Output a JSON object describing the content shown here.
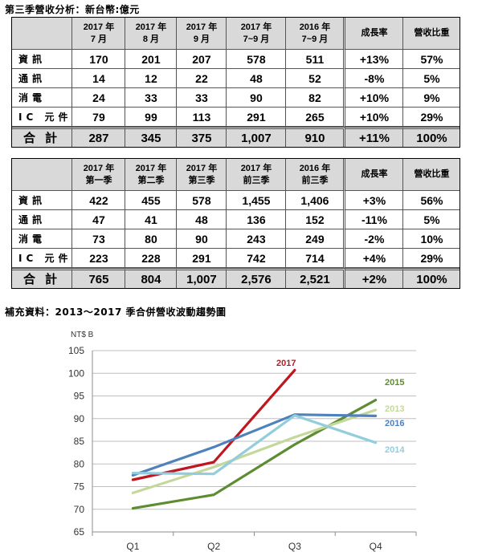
{
  "heading1": "第三季營收分析：新台幣:億元",
  "heading2": "補充資料：2013～2017 季合併營收波動趨勢圖",
  "table1": {
    "headers": [
      "",
      "2017 年\n7 月",
      "2017 年\n8 月",
      "2017 年\n9 月",
      "2017 年\n7~9 月",
      "2016 年\n7~9 月",
      "成長率",
      "營收比重"
    ],
    "rows": [
      [
        "資訊",
        "170",
        "201",
        "207",
        "578",
        "511",
        "+13%",
        "57%"
      ],
      [
        "通訊",
        "14",
        "12",
        "22",
        "48",
        "52",
        "-8%",
        "5%"
      ],
      [
        "消電",
        "24",
        "33",
        "33",
        "90",
        "82",
        "+10%",
        "9%"
      ],
      [
        "IC 元件",
        "79",
        "99",
        "113",
        "291",
        "265",
        "+10%",
        "29%"
      ]
    ],
    "total": [
      "合計",
      "287",
      "345",
      "375",
      "1,007",
      "910",
      "+11%",
      "100%"
    ]
  },
  "table2": {
    "headers": [
      "",
      "2017 年\n第一季",
      "2017 年\n第二季",
      "2017 年\n第三季",
      "2017 年\n前三季",
      "2016 年\n前三季",
      "成長率",
      "營收比重"
    ],
    "rows": [
      [
        "資訊",
        "422",
        "455",
        "578",
        "1,455",
        "1,406",
        "+3%",
        "56%"
      ],
      [
        "通訊",
        "47",
        "41",
        "48",
        "136",
        "152",
        "-11%",
        "5%"
      ],
      [
        "消電",
        "73",
        "80",
        "90",
        "243",
        "249",
        "-2%",
        "10%"
      ],
      [
        "IC 元件",
        "223",
        "228",
        "291",
        "742",
        "714",
        "+4%",
        "29%"
      ]
    ],
    "total": [
      "合計",
      "765",
      "804",
      "1,007",
      "2,576",
      "2,521",
      "+2%",
      "100%"
    ]
  },
  "chart_data": {
    "type": "line",
    "ylabel": "NT$ B",
    "categories": [
      "Q1",
      "Q2",
      "Q3",
      "Q4"
    ],
    "ylim": [
      65,
      105
    ],
    "yticks": [
      65,
      70,
      75,
      80,
      85,
      90,
      95,
      100,
      105
    ],
    "grid": true,
    "series": [
      {
        "name": "2017",
        "color": "#c0161f",
        "values": [
          76.5,
          80.4,
          100.7,
          null
        ]
      },
      {
        "name": "2015",
        "color": "#5e8c31",
        "values": [
          70.2,
          73.2,
          84.3,
          94.1
        ]
      },
      {
        "name": "2013",
        "color": "#c4d89c",
        "values": [
          73.6,
          79.3,
          85.9,
          91.9
        ]
      },
      {
        "name": "2016",
        "color": "#4f81bd",
        "values": [
          77.5,
          83.7,
          90.9,
          90.6
        ]
      },
      {
        "name": "2014",
        "color": "#93cddd",
        "values": [
          78.0,
          77.8,
          90.7,
          84.7
        ]
      }
    ]
  }
}
